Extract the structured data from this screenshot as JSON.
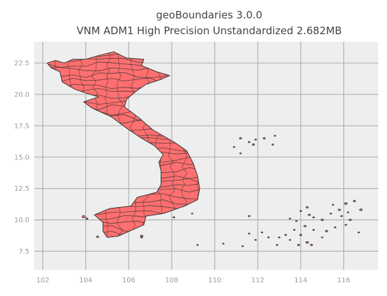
{
  "title": "geoBoundaries 3.0.0",
  "subtitle": "VNM ADM1 High Precision Unstandardized 2.682MB",
  "colors": {
    "background": "#ffffff",
    "plot_area": "#eeeeee",
    "grid": "#b0b0b0",
    "fill": "#ff6f6f",
    "edge": "#333333",
    "tick_text": "#9a9a9a",
    "title_text": "#444444"
  },
  "chart_data": {
    "type": "map",
    "title": "geoBoundaries 3.0.0",
    "subtitle": "VNM ADM1 High Precision Unstandardized 2.682MB",
    "xlabel": "",
    "ylabel": "",
    "xlim": [
      101.6,
      117.6
    ],
    "ylim": [
      6.0,
      24.2
    ],
    "xticks": [
      102,
      104,
      106,
      108,
      110,
      112,
      114,
      116
    ],
    "yticks": [
      7.5,
      10.0,
      12.5,
      15.0,
      17.5,
      20.0,
      22.5
    ],
    "xtick_labels": [
      "102",
      "104",
      "106",
      "108",
      "110",
      "112",
      "114",
      "116"
    ],
    "ytick_labels": [
      "7.5",
      "10.0",
      "12.5",
      "15.0",
      "17.5",
      "20.0",
      "22.5"
    ],
    "grid": true,
    "legend": "none",
    "outline": [
      [
        102.2,
        22.5
      ],
      [
        102.6,
        22.7
      ],
      [
        103.0,
        22.5
      ],
      [
        103.4,
        22.8
      ],
      [
        104.0,
        22.8
      ],
      [
        104.6,
        23.1
      ],
      [
        105.3,
        23.4
      ],
      [
        105.9,
        22.9
      ],
      [
        106.7,
        22.8
      ],
      [
        106.6,
        22.3
      ],
      [
        107.3,
        21.8
      ],
      [
        107.9,
        21.5
      ],
      [
        107.5,
        21.2
      ],
      [
        106.8,
        20.8
      ],
      [
        106.3,
        20.2
      ],
      [
        105.9,
        19.6
      ],
      [
        105.8,
        19.0
      ],
      [
        106.5,
        18.1
      ],
      [
        107.1,
        17.2
      ],
      [
        108.2,
        16.1
      ],
      [
        108.7,
        15.5
      ],
      [
        109.0,
        14.5
      ],
      [
        109.2,
        13.5
      ],
      [
        109.3,
        12.5
      ],
      [
        109.2,
        11.6
      ],
      [
        108.6,
        11.1
      ],
      [
        107.6,
        10.5
      ],
      [
        106.8,
        10.3
      ],
      [
        106.7,
        9.6
      ],
      [
        105.5,
        8.7
      ],
      [
        105.0,
        8.6
      ],
      [
        104.8,
        9.1
      ],
      [
        104.8,
        9.8
      ],
      [
        104.4,
        10.4
      ],
      [
        105.1,
        10.9
      ],
      [
        106.1,
        11.1
      ],
      [
        106.4,
        11.8
      ],
      [
        107.3,
        12.2
      ],
      [
        107.5,
        12.8
      ],
      [
        107.5,
        13.9
      ],
      [
        107.4,
        14.6
      ],
      [
        107.6,
        15.2
      ],
      [
        107.2,
        15.9
      ],
      [
        106.6,
        16.5
      ],
      [
        105.9,
        17.3
      ],
      [
        105.2,
        18.2
      ],
      [
        104.3,
        18.9
      ],
      [
        103.9,
        19.4
      ],
      [
        104.6,
        19.8
      ],
      [
        104.2,
        20.0
      ],
      [
        103.5,
        20.4
      ],
      [
        102.9,
        21.0
      ],
      [
        102.8,
        21.8
      ],
      [
        102.4,
        22.1
      ]
    ],
    "islands": [
      [
        103.9,
        10.25,
        0.07
      ],
      [
        104.05,
        10.1,
        0.05
      ],
      [
        104.55,
        8.65,
        0.05
      ],
      [
        106.6,
        8.7,
        0.06
      ],
      [
        106.6,
        8.6,
        0.04
      ],
      [
        108.1,
        10.2,
        0.04
      ],
      [
        108.95,
        10.5,
        0.03
      ],
      [
        109.2,
        8.0,
        0.03
      ],
      [
        111.2,
        16.5,
        0.05
      ],
      [
        111.6,
        16.2,
        0.04
      ],
      [
        111.8,
        16.0,
        0.05
      ],
      [
        111.9,
        16.4,
        0.04
      ],
      [
        112.3,
        16.5,
        0.05
      ],
      [
        112.7,
        16.0,
        0.04
      ],
      [
        110.9,
        15.8,
        0.03
      ],
      [
        112.8,
        16.7,
        0.03
      ],
      [
        111.2,
        15.3,
        0.03
      ],
      [
        114.3,
        11.0,
        0.05
      ],
      [
        114.0,
        10.7,
        0.04
      ],
      [
        114.4,
        10.4,
        0.05
      ],
      [
        114.6,
        10.2,
        0.04
      ],
      [
        115.0,
        10.0,
        0.05
      ],
      [
        115.4,
        10.5,
        0.04
      ],
      [
        115.8,
        10.8,
        0.05
      ],
      [
        116.1,
        11.3,
        0.06
      ],
      [
        116.5,
        11.5,
        0.05
      ],
      [
        116.8,
        10.8,
        0.06
      ],
      [
        116.3,
        10.0,
        0.05
      ],
      [
        115.9,
        10.3,
        0.04
      ],
      [
        113.8,
        9.9,
        0.04
      ],
      [
        114.2,
        9.5,
        0.05
      ],
      [
        114.6,
        9.2,
        0.04
      ],
      [
        115.2,
        9.1,
        0.05
      ],
      [
        115.6,
        9.4,
        0.04
      ],
      [
        116.1,
        9.6,
        0.04
      ],
      [
        113.3,
        8.8,
        0.04
      ],
      [
        113.0,
        8.6,
        0.04
      ],
      [
        114.0,
        8.8,
        0.05
      ],
      [
        114.3,
        8.2,
        0.06
      ],
      [
        114.5,
        8.0,
        0.05
      ],
      [
        113.9,
        8.0,
        0.05
      ],
      [
        112.5,
        8.6,
        0.04
      ],
      [
        112.9,
        8.0,
        0.04
      ],
      [
        111.9,
        8.4,
        0.03
      ],
      [
        111.3,
        7.9,
        0.03
      ],
      [
        110.4,
        8.1,
        0.03
      ],
      [
        111.6,
        8.9,
        0.03
      ],
      [
        113.5,
        8.4,
        0.03
      ],
      [
        115.0,
        8.6,
        0.03
      ],
      [
        116.7,
        9.0,
        0.03
      ],
      [
        115.5,
        11.2,
        0.03
      ],
      [
        116.2,
        10.6,
        0.03
      ],
      [
        113.5,
        10.1,
        0.03
      ],
      [
        112.2,
        9.0,
        0.03
      ],
      [
        111.6,
        10.3,
        0.04
      ],
      [
        113.7,
        9.2,
        0.03
      ]
    ]
  }
}
